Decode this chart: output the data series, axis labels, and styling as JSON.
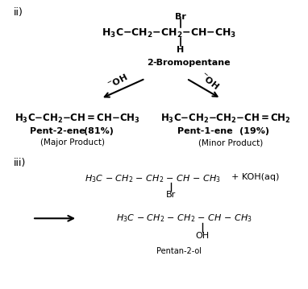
{
  "background_color": "#ffffff",
  "ii_label": "ii)",
  "iii_label": "iii)",
  "reactant_formula": "H₃C–CH₂–CH₂–CH–CH₃",
  "reactant_name_bold": "2",
  "reactant_name_rest": "-Bromopentane",
  "br_label": "Br",
  "h_label": "H",
  "oh_label": "⁻OH",
  "product1_formula": "H₃C–CH₂–CH=CH–CH₃",
  "product1_name": "Pent-2-ene",
  "product1_pct": "(81%)",
  "product1_type": "(Major Product)",
  "product2_formula": "H₃C–CH₂–CH₂–CH=CH₂",
  "product2_name": "Pent-1-ene",
  "product2_pct": "(19%)",
  "product2_type": "(Minor Product)",
  "iii_reactant": "H₃C - CH₂ - CH₂ - CH - CH₃",
  "koh": "+ KOH(aq)",
  "br2": "Br",
  "iii_product": "H₃C - CH₂ - CH₂ - CH - CH₃",
  "oh2": "OH",
  "pentan": "Pentan-2-ol"
}
